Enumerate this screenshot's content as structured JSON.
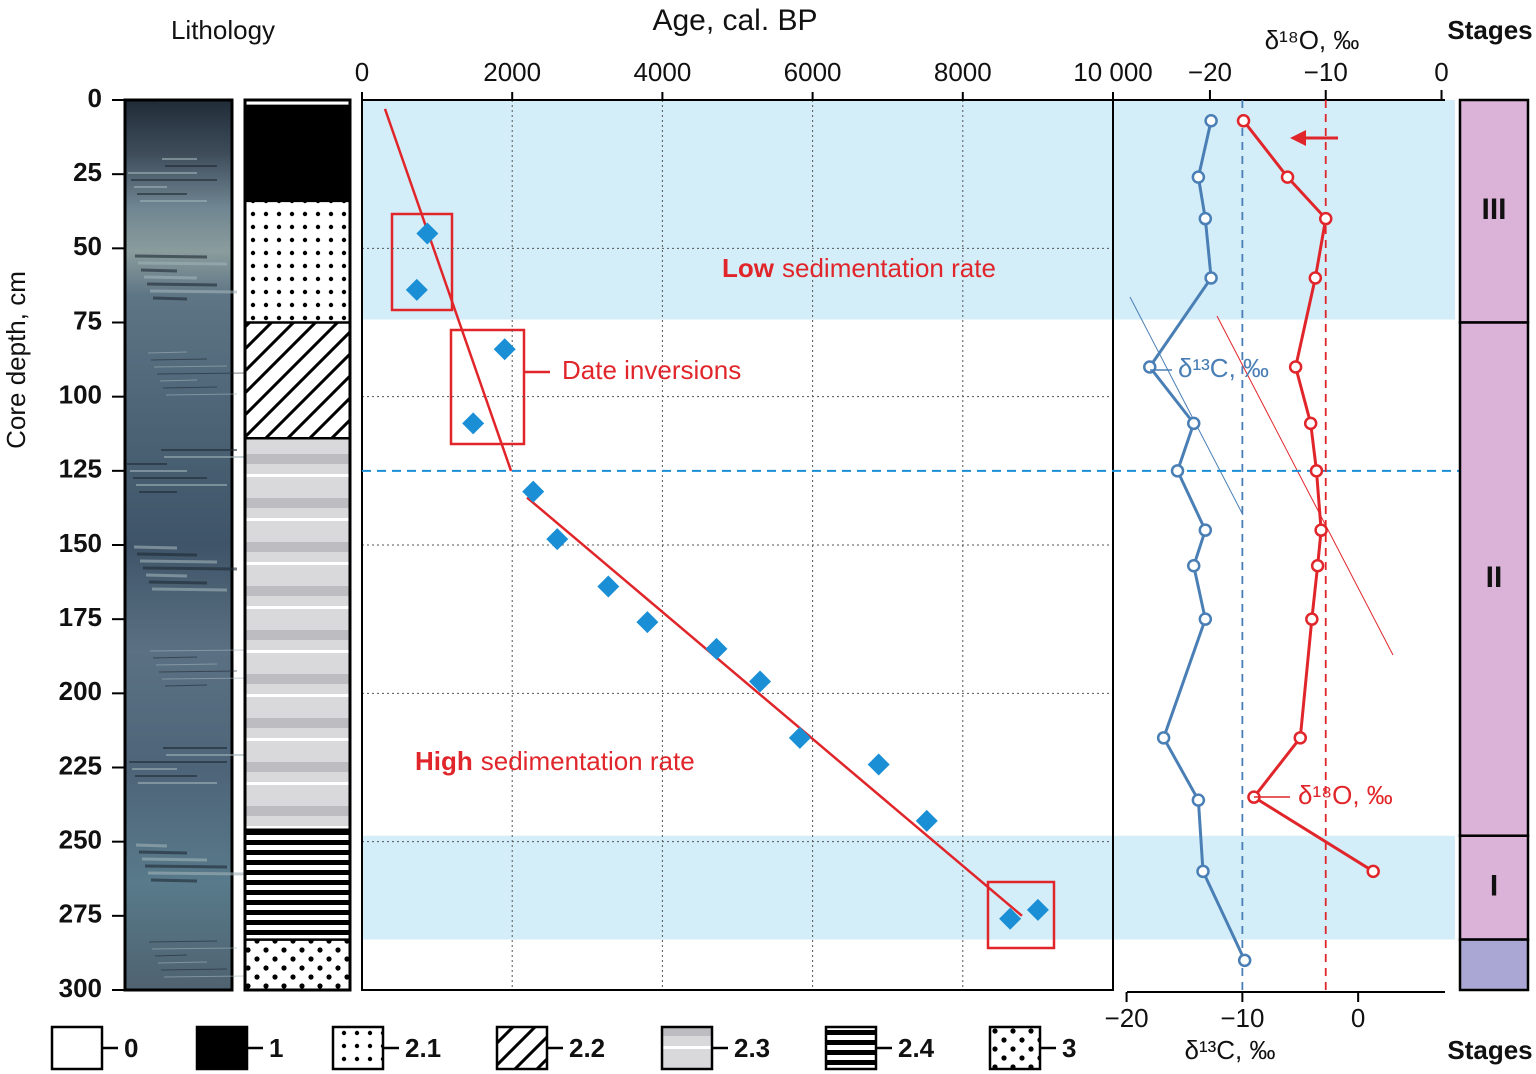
{
  "chart_data": [
    {
      "type": "scatter",
      "title": "Age, cal. BP",
      "ylabel": "Core depth, cm",
      "xlim": [
        0,
        10000
      ],
      "xticks": [
        0,
        2000,
        4000,
        6000,
        8000,
        {
          "value": 10000,
          "label": "10 000"
        }
      ],
      "ylim": [
        0,
        300
      ],
      "yticks": [
        0,
        25,
        50,
        75,
        100,
        125,
        150,
        175,
        200,
        225,
        250,
        275,
        300
      ],
      "grid": true,
      "ygrid": [
        50,
        100,
        150,
        200,
        250
      ],
      "color": "#1a8fd6",
      "x": [
        870,
        730,
        1900,
        1480,
        2280,
        2600,
        3280,
        3800,
        4720,
        5300,
        5830,
        6880,
        7520,
        8630,
        9000
      ],
      "values": [
        45,
        64,
        84,
        109,
        132,
        148,
        164,
        176,
        185,
        196,
        215,
        224,
        243,
        276,
        273
      ],
      "fit_lines": {
        "color": "#e0262b",
        "segments": [
          {
            "x": [
              306,
              1984
            ],
            "values": [
              3,
              125
            ]
          },
          {
            "x": [
              2197,
              8788
            ],
            "values": [
              134,
              275
            ]
          }
        ]
      },
      "reference_depth": 125,
      "shaded_depths": [
        [
          0,
          74
        ],
        [
          248,
          283
        ]
      ],
      "shade_color": "#d4eef9",
      "annotations": [
        {
          "bold": "Low",
          "text": "sedimentation rate"
        },
        {
          "bold": "High",
          "text": "sedimentation rate"
        },
        {
          "text": "Date inversions"
        }
      ]
    },
    {
      "type": "line",
      "xlabel": "δ¹³C, ‰",
      "x2label": "δ¹⁸O, ‰",
      "xlim": [
        -21,
        7.5
      ],
      "xticks": [
        {
          "value": -20,
          "label": "−20"
        },
        {
          "value": -10,
          "label": "−10"
        },
        0
      ],
      "x2lim": [
        -28.2,
        0.3
      ],
      "x2ticks": [
        {
          "value": -20,
          "label": "−20"
        },
        {
          "value": -10,
          "label": "−10"
        },
        0
      ],
      "ylim": [
        0,
        300
      ],
      "reference_x": [
        {
          "axis": "x",
          "value": -10
        },
        {
          "axis": "x2",
          "value": -10
        }
      ],
      "series": [
        {
          "name": "δ¹³C, ‰",
          "color": "#4a7fb5",
          "axis": "x",
          "x": [
            -12.7,
            -13.8,
            -13.2,
            -12.7,
            -18.0,
            -14.2,
            -15.6,
            -13.2,
            -14.2,
            -13.2,
            -16.8,
            -13.8,
            -13.4,
            -9.8
          ],
          "values": [
            7,
            26,
            40,
            60,
            90,
            109,
            125,
            145,
            157,
            175,
            215,
            236,
            260,
            290
          ]
        },
        {
          "name": "δ¹⁸O, ‰",
          "color": "#e0262b",
          "axis": "x2",
          "x": [
            -17.1,
            -13.3,
            -10.0,
            -10.9,
            -12.6,
            -11.3,
            -10.8,
            -10.4,
            -10.7,
            -11.2,
            -12.2,
            -16.2,
            -5.9
          ],
          "values": [
            7,
            26,
            40,
            60,
            90,
            109,
            125,
            145,
            157,
            175,
            215,
            235,
            260
          ]
        }
      ]
    }
  ],
  "lithology": {
    "title": "Lithology",
    "units": [
      {
        "code": "0",
        "top": 0,
        "bottom": 2
      },
      {
        "code": "1",
        "top": 2,
        "bottom": 34
      },
      {
        "code": "2.1",
        "top": 34,
        "bottom": 75
      },
      {
        "code": "2.2",
        "top": 75,
        "bottom": 114
      },
      {
        "code": "2.3",
        "top": 114,
        "bottom": 246
      },
      {
        "code": "2.4",
        "top": 246,
        "bottom": 283
      },
      {
        "code": "3",
        "top": 283,
        "bottom": 300
      }
    ],
    "legend": [
      "0",
      "1",
      "2.1",
      "2.2",
      "2.3",
      "2.4",
      "3"
    ]
  },
  "stages": {
    "title": "Stages",
    "bottom_title": "Stages",
    "items": [
      {
        "label": "III",
        "top": 0,
        "bottom": 75,
        "color": "#dcb3d8"
      },
      {
        "label": "II",
        "top": 75,
        "bottom": 248,
        "color": "#dcb3d8"
      },
      {
        "label": "I",
        "top": 248,
        "bottom": 283,
        "color": "#dcb3d8"
      },
      {
        "top": 283,
        "bottom": 300,
        "color": "#aaa7d4"
      }
    ]
  }
}
